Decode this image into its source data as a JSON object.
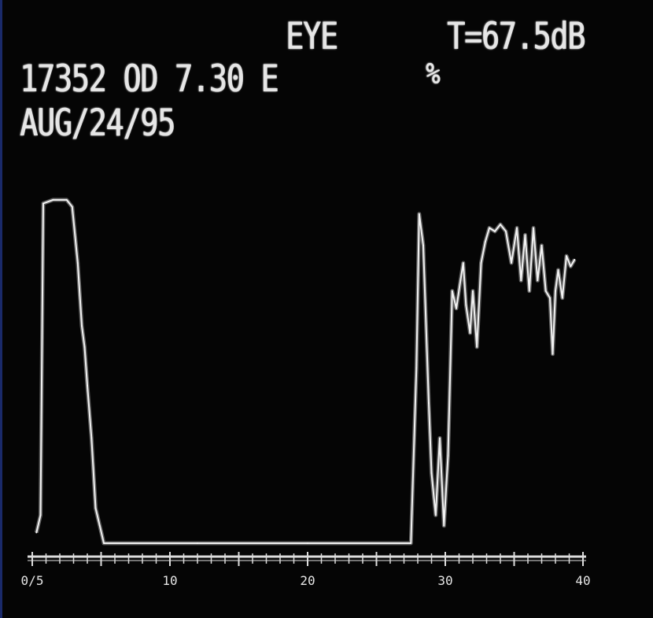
{
  "screen": {
    "eye_label": "EYE",
    "gain_readout": "T=67.5dB",
    "patient_line": "17352 OD 7.30 E",
    "date": "AUG/24/95",
    "marker_glyph": "%"
  },
  "chart_data": {
    "type": "line",
    "title": "",
    "xlabel": "",
    "ylabel": "",
    "x_ticks": [
      "0/5",
      "10",
      "20",
      "30",
      "40"
    ],
    "xlim": [
      0,
      40
    ],
    "ylim": [
      0,
      100
    ],
    "grid": false,
    "series": [
      {
        "points": [
          [
            0.3,
            3
          ],
          [
            0.6,
            8
          ],
          [
            0.8,
            97
          ],
          [
            1.5,
            98
          ],
          [
            2.5,
            98
          ],
          [
            2.9,
            96
          ],
          [
            3.3,
            80
          ],
          [
            3.6,
            62
          ],
          [
            3.8,
            56
          ],
          [
            4.0,
            45
          ],
          [
            4.3,
            30
          ],
          [
            4.6,
            10
          ],
          [
            4.9,
            5
          ],
          [
            5.2,
            0
          ],
          [
            12,
            0
          ],
          [
            20,
            0
          ],
          [
            27.5,
            0
          ],
          [
            27.9,
            50
          ],
          [
            28.1,
            94
          ],
          [
            28.4,
            85
          ],
          [
            28.8,
            40
          ],
          [
            29.0,
            20
          ],
          [
            29.3,
            8
          ],
          [
            29.6,
            30
          ],
          [
            29.9,
            5
          ],
          [
            30.2,
            25
          ],
          [
            30.5,
            72
          ],
          [
            30.8,
            67
          ],
          [
            31.1,
            75
          ],
          [
            31.3,
            80
          ],
          [
            31.5,
            68
          ],
          [
            31.8,
            60
          ],
          [
            32.0,
            72
          ],
          [
            32.3,
            56
          ],
          [
            32.6,
            80
          ],
          [
            32.9,
            86
          ],
          [
            33.2,
            90
          ],
          [
            33.6,
            89
          ],
          [
            34.0,
            91
          ],
          [
            34.4,
            89
          ],
          [
            34.8,
            80
          ],
          [
            35.2,
            90
          ],
          [
            35.5,
            75
          ],
          [
            35.8,
            88
          ],
          [
            36.1,
            72
          ],
          [
            36.4,
            90
          ],
          [
            36.7,
            75
          ],
          [
            37.0,
            85
          ],
          [
            37.3,
            72
          ],
          [
            37.6,
            70
          ],
          [
            37.8,
            54
          ],
          [
            38.0,
            72
          ],
          [
            38.2,
            78
          ],
          [
            38.5,
            70
          ],
          [
            38.8,
            82
          ],
          [
            39.1,
            79
          ],
          [
            39.4,
            81
          ]
        ]
      }
    ]
  }
}
